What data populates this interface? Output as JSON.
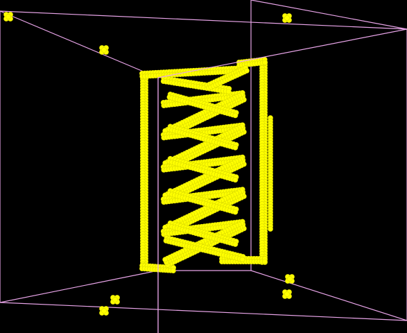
{
  "scene": {
    "background_color": "#000000",
    "box_color": "#e9a5e9",
    "atom_color": "#ffff00",
    "atom_edge_color": "#d8d800",
    "structure": "helical-coil-with-frame",
    "helix_turns": 5,
    "isolated_clusters": 8
  }
}
